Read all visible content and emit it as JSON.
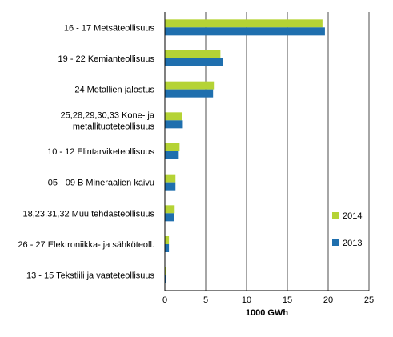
{
  "chart_data": {
    "type": "bar",
    "orientation": "horizontal",
    "title": "",
    "xlabel": "1000 GWh",
    "ylabel": "",
    "xlim": [
      0,
      25
    ],
    "x_ticks": [
      0,
      5,
      10,
      15,
      20,
      25
    ],
    "grid": "vertical gridlines",
    "legend_position": "right",
    "categories": [
      "16 - 17 Metsäteollisuus",
      "19 - 22 Kemianteollisuus",
      "24 Metallien jalostus",
      "25,28,29,30,33 Kone- ja metallituoteteollisuus",
      "10 - 12 Elintarviketeollisuus",
      "05 - 09 B Mineraalien kaivu",
      "18,23,31,32 Muu tehdasteollisuus",
      "26 - 27 Elektroniikka- ja sähköteoll.",
      "13 - 15 Tekstiili ja vaateteollisuus"
    ],
    "category_lines": [
      [
        "16 - 17 Metsäteollisuus"
      ],
      [
        "19 - 22 Kemianteollisuus"
      ],
      [
        "24 Metallien jalostus"
      ],
      [
        "25,28,29,30,33 Kone- ja",
        "metallituoteteollisuus"
      ],
      [
        "10 - 12 Elintarviketeollisuus"
      ],
      [
        "05 - 09 B Mineraalien kaivu"
      ],
      [
        "18,23,31,32 Muu tehdasteollisuus"
      ],
      [
        "26 - 27 Elektroniikka- ja sähköteoll."
      ],
      [
        "13 - 15 Tekstiili ja vaateteollisuus"
      ]
    ],
    "series": [
      {
        "name": "2014",
        "color": "#b5d335",
        "values": [
          19.3,
          6.8,
          6.0,
          2.1,
          1.8,
          1.3,
          1.2,
          0.5,
          0.1
        ]
      },
      {
        "name": "2013",
        "color": "#1f6fae",
        "values": [
          19.6,
          7.1,
          5.9,
          2.2,
          1.7,
          1.3,
          1.1,
          0.5,
          0.1
        ]
      }
    ]
  }
}
